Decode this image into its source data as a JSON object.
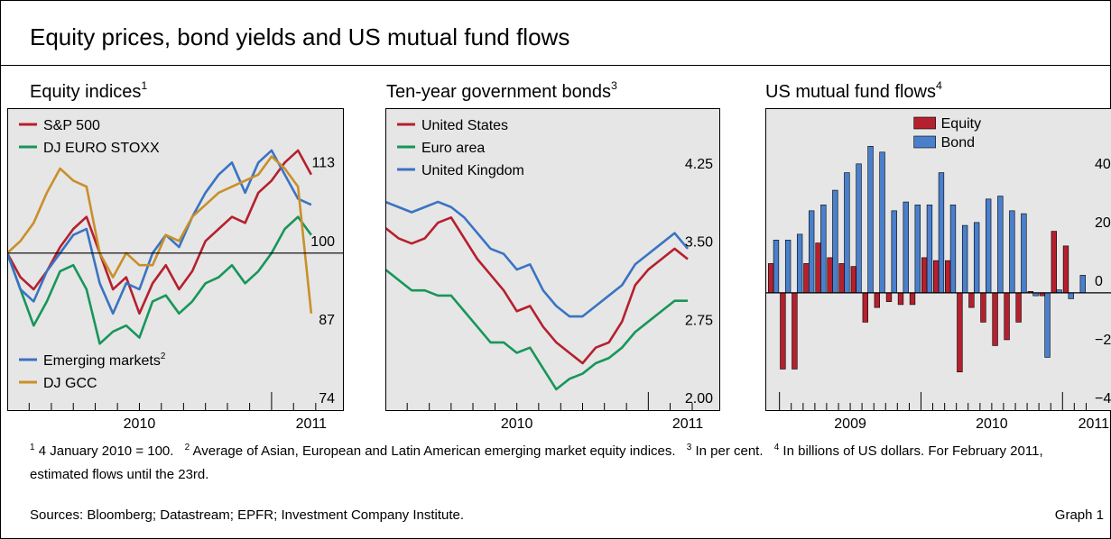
{
  "title": "Equity prices, bond yields and US mutual fund flows",
  "chart_data": [
    {
      "type": "line",
      "title": "Equity indices",
      "title_note": "1",
      "x": [
        2010.0,
        2010.05,
        2010.1,
        2010.15,
        2010.2,
        2010.25,
        2010.3,
        2010.35,
        2010.4,
        2010.45,
        2010.5,
        2010.55,
        2010.6,
        2010.65,
        2010.7,
        2010.75,
        2010.8,
        2010.85,
        2010.9,
        2010.95,
        2011.0,
        2011.05,
        2011.1,
        2011.15
      ],
      "xlim": [
        2010.0,
        2011.27
      ],
      "xticks": [
        {
          "value": 2010.5,
          "label": "2010"
        },
        {
          "value": 2011.15,
          "label": "2011"
        }
      ],
      "xminor": [
        2010.083,
        2010.167,
        2010.25,
        2010.333,
        2010.417,
        2010.5,
        2010.583,
        2010.667,
        2010.75,
        2010.833,
        2010.917,
        2011.083,
        2011.167
      ],
      "xmajor": [
        2011
      ],
      "ylim": [
        74,
        124
      ],
      "yticks": [
        74,
        87,
        100,
        113
      ],
      "hline": 100,
      "legend": "upper left",
      "series": [
        {
          "name": "S&P 500",
          "color": "#b5202e",
          "values": [
            100,
            96,
            94,
            97,
            101,
            104,
            106,
            100,
            94,
            96,
            90,
            95,
            98,
            94,
            97,
            102,
            104,
            106,
            105,
            110,
            112,
            115,
            117,
            113
          ]
        },
        {
          "name": "DJ EURO STOXX",
          "color": "#17965a",
          "values": [
            100,
            94,
            88,
            92,
            97,
            98,
            94,
            85,
            87,
            88,
            86,
            92,
            93,
            90,
            92,
            95,
            96,
            98,
            95,
            97,
            100,
            104,
            106,
            103
          ]
        },
        {
          "name": "Emerging markets",
          "name_note": "2",
          "legend": "lower left",
          "color": "#3b73c2",
          "values": [
            100,
            94,
            92,
            97,
            100,
            103,
            104,
            95,
            90,
            95,
            94,
            100,
            103,
            101,
            106,
            110,
            113,
            115,
            110,
            115,
            117,
            113,
            109,
            108
          ]
        },
        {
          "name": "DJ GCC",
          "legend": "lower left",
          "color": "#c8902a",
          "values": [
            100,
            102,
            105,
            110,
            114,
            112,
            111,
            100,
            96,
            100,
            98,
            98,
            103,
            102,
            106,
            108,
            110,
            111,
            112,
            113,
            116,
            114,
            111,
            90
          ]
        }
      ]
    },
    {
      "type": "line",
      "title": "Ten-year government bonds",
      "title_note": "3",
      "x": [
        2010.0,
        2010.05,
        2010.1,
        2010.15,
        2010.2,
        2010.25,
        2010.3,
        2010.35,
        2010.4,
        2010.45,
        2010.5,
        2010.55,
        2010.6,
        2010.65,
        2010.7,
        2010.75,
        2010.8,
        2010.85,
        2010.9,
        2010.95,
        2011.0,
        2011.05,
        2011.1,
        2011.15
      ],
      "xlim": [
        2010.0,
        2011.27
      ],
      "xticks": [
        {
          "value": 2010.5,
          "label": "2010"
        },
        {
          "value": 2011.15,
          "label": "2011"
        }
      ],
      "xminor": [
        2010.083,
        2010.167,
        2010.25,
        2010.333,
        2010.417,
        2010.5,
        2010.583,
        2010.667,
        2010.75,
        2010.833,
        2010.917,
        2011.083,
        2011.167
      ],
      "xmajor": [
        2011
      ],
      "ylim": [
        2.0,
        4.9
      ],
      "yticks": [
        {
          "value": 2.0,
          "label": "2.00"
        },
        2.75,
        {
          "value": 3.5,
          "label": "3.50"
        },
        4.25
      ],
      "legend": "upper left",
      "series": [
        {
          "name": "United States",
          "color": "#b5202e",
          "values": [
            3.75,
            3.65,
            3.6,
            3.65,
            3.8,
            3.85,
            3.65,
            3.45,
            3.3,
            3.15,
            2.95,
            3.0,
            2.8,
            2.65,
            2.55,
            2.45,
            2.6,
            2.65,
            2.85,
            3.2,
            3.35,
            3.45,
            3.55,
            3.45
          ]
        },
        {
          "name": "Euro area",
          "color": "#17965a",
          "values": [
            3.35,
            3.25,
            3.15,
            3.15,
            3.1,
            3.1,
            2.95,
            2.8,
            2.65,
            2.65,
            2.55,
            2.6,
            2.4,
            2.2,
            2.3,
            2.35,
            2.45,
            2.5,
            2.6,
            2.75,
            2.85,
            2.95,
            3.05,
            3.05
          ]
        },
        {
          "name": "United Kingdom",
          "color": "#3b73c2",
          "values": [
            4.0,
            3.95,
            3.9,
            3.95,
            4.0,
            3.95,
            3.85,
            3.7,
            3.55,
            3.5,
            3.35,
            3.4,
            3.15,
            3.0,
            2.9,
            2.9,
            3.0,
            3.1,
            3.2,
            3.4,
            3.5,
            3.6,
            3.7,
            3.55
          ]
        }
      ]
    },
    {
      "type": "bar",
      "title": "US mutual fund flows",
      "title_note": "4",
      "x": [
        2008.958,
        2009.042,
        2009.125,
        2009.208,
        2009.292,
        2009.375,
        2009.458,
        2009.542,
        2009.625,
        2009.708,
        2009.792,
        2009.875,
        2009.958,
        2010.042,
        2010.125,
        2010.208,
        2010.292,
        2010.375,
        2010.458,
        2010.542,
        2010.625,
        2010.708,
        2010.792,
        2010.875,
        2010.958,
        2011.042,
        2011.125
      ],
      "xlim": [
        2008.9,
        2011.4
      ],
      "xticks": [
        {
          "value": 2009.5,
          "label": "2009"
        },
        {
          "value": 2010.5,
          "label": "2010"
        },
        {
          "value": 2011.22,
          "label": "2011"
        }
      ],
      "xminor": [
        2009.083,
        2009.167,
        2009.25,
        2009.333,
        2009.417,
        2009.5,
        2009.583,
        2009.667,
        2009.75,
        2009.833,
        2009.917,
        2010.083,
        2010.167,
        2010.25,
        2010.333,
        2010.417,
        2010.5,
        2010.583,
        2010.667,
        2010.75,
        2010.833,
        2010.917,
        2011.083,
        2011.167
      ],
      "xmajor": [
        2009,
        2010,
        2011
      ],
      "ylim": [
        -40,
        63
      ],
      "yticks": [
        {
          "value": -40,
          "label": "−40"
        },
        {
          "value": -20,
          "label": "−20"
        },
        0,
        20,
        40
      ],
      "hline": 0,
      "legend": "upper center",
      "series": [
        {
          "name": "Equity",
          "color": "#b5202e",
          "values": [
            10,
            -26,
            -26,
            10,
            17,
            12,
            10,
            9,
            -10,
            -5,
            -3,
            -4,
            -4,
            12,
            11,
            11,
            -27,
            -5,
            -10,
            -18,
            -16,
            -10,
            0.5,
            -1,
            21,
            16,
            0
          ]
        },
        {
          "name": "Bond",
          "color": "#4a7fcc",
          "values": [
            18,
            18,
            20,
            28,
            30,
            35,
            41,
            44,
            50,
            48,
            28,
            31,
            30,
            30,
            41,
            30,
            23,
            24,
            32,
            33,
            28,
            27,
            -1,
            -22,
            1,
            -2,
            6
          ]
        }
      ]
    }
  ],
  "footnotes": [
    {
      "mark": "1",
      "text": "4 January 2010 = 100."
    },
    {
      "mark": "2",
      "text": "Average of Asian, European and Latin American emerging market equity indices."
    },
    {
      "mark": "3",
      "text": "In per cent."
    },
    {
      "mark": "4",
      "text": "In billions of US dollars. For February 2011, estimated flows until the 23rd."
    }
  ],
  "sources": "Sources: Bloomberg; Datastream; EPFR; Investment Company Institute.",
  "graph_label": "Graph 1"
}
